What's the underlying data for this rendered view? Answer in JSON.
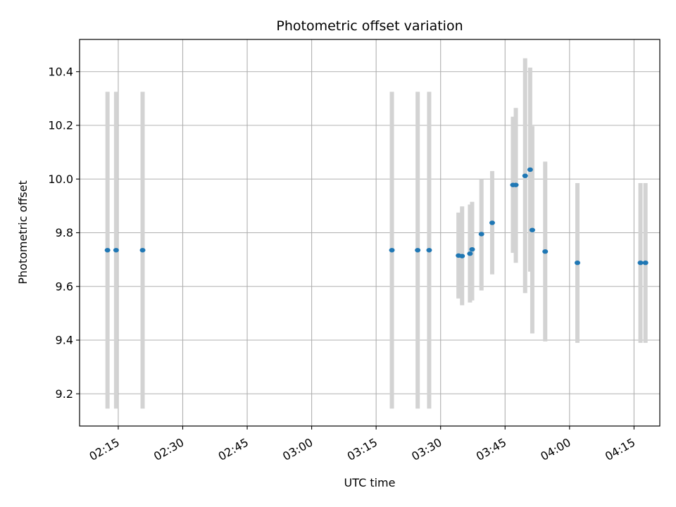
{
  "chart_data": {
    "type": "scatter",
    "title": "Photometric offset variation",
    "xlabel": "UTC time",
    "ylabel": "Photometric offset",
    "xlim": [
      "02:06",
      "04:21"
    ],
    "ylim": [
      9.08,
      10.52
    ],
    "x_ticks": [
      "02:15",
      "02:30",
      "02:45",
      "03:00",
      "03:15",
      "03:30",
      "03:45",
      "04:00",
      "04:15"
    ],
    "y_ticks": [
      "9.2",
      "9.4",
      "9.6",
      "9.8",
      "10.0",
      "10.2",
      "10.4"
    ],
    "grid": true,
    "error_bar_style": "vertical light-grey bars",
    "colors": {
      "point": "#1f77b4",
      "error_bar": "#d3d3d3",
      "grid": "#b0b0b0"
    },
    "points": [
      {
        "x": "02:12:30",
        "y": 9.735,
        "err_low": 9.145,
        "err_high": 10.325
      },
      {
        "x": "02:14:30",
        "y": 9.735,
        "err_low": 9.145,
        "err_high": 10.325
      },
      {
        "x": "02:20:40",
        "y": 9.735,
        "err_low": 9.145,
        "err_high": 10.325
      },
      {
        "x": "03:18:40",
        "y": 9.735,
        "err_low": 9.145,
        "err_high": 10.325
      },
      {
        "x": "03:24:40",
        "y": 9.735,
        "err_low": 9.145,
        "err_high": 10.325
      },
      {
        "x": "03:27:20",
        "y": 9.735,
        "err_low": 9.145,
        "err_high": 10.325
      },
      {
        "x": "03:34:10",
        "y": 9.715,
        "err_low": 9.555,
        "err_high": 9.875
      },
      {
        "x": "03:35:00",
        "y": 9.713,
        "err_low": 9.53,
        "err_high": 9.898
      },
      {
        "x": "03:36:50",
        "y": 9.722,
        "err_low": 9.54,
        "err_high": 9.905
      },
      {
        "x": "03:37:20",
        "y": 9.738,
        "err_low": 9.548,
        "err_high": 9.915
      },
      {
        "x": "03:39:30",
        "y": 9.795,
        "err_low": 9.585,
        "err_high": 10.0
      },
      {
        "x": "03:42:00",
        "y": 9.837,
        "err_low": 9.645,
        "err_high": 10.03
      },
      {
        "x": "03:46:50",
        "y": 9.978,
        "err_low": 9.725,
        "err_high": 10.232
      },
      {
        "x": "03:47:30",
        "y": 9.978,
        "err_low": 9.688,
        "err_high": 10.265
      },
      {
        "x": "03:49:40",
        "y": 10.012,
        "err_low": 9.575,
        "err_high": 10.45
      },
      {
        "x": "03:50:50",
        "y": 10.035,
        "err_low": 9.655,
        "err_high": 10.415
      },
      {
        "x": "03:51:20",
        "y": 9.81,
        "err_low": 9.425,
        "err_high": 10.197
      },
      {
        "x": "03:54:20",
        "y": 9.73,
        "err_low": 9.395,
        "err_high": 10.065
      },
      {
        "x": "04:01:50",
        "y": 9.688,
        "err_low": 9.39,
        "err_high": 9.985
      },
      {
        "x": "04:16:30",
        "y": 9.688,
        "err_low": 9.39,
        "err_high": 9.985
      },
      {
        "x": "04:17:40",
        "y": 9.688,
        "err_low": 9.39,
        "err_high": 9.985
      }
    ]
  }
}
